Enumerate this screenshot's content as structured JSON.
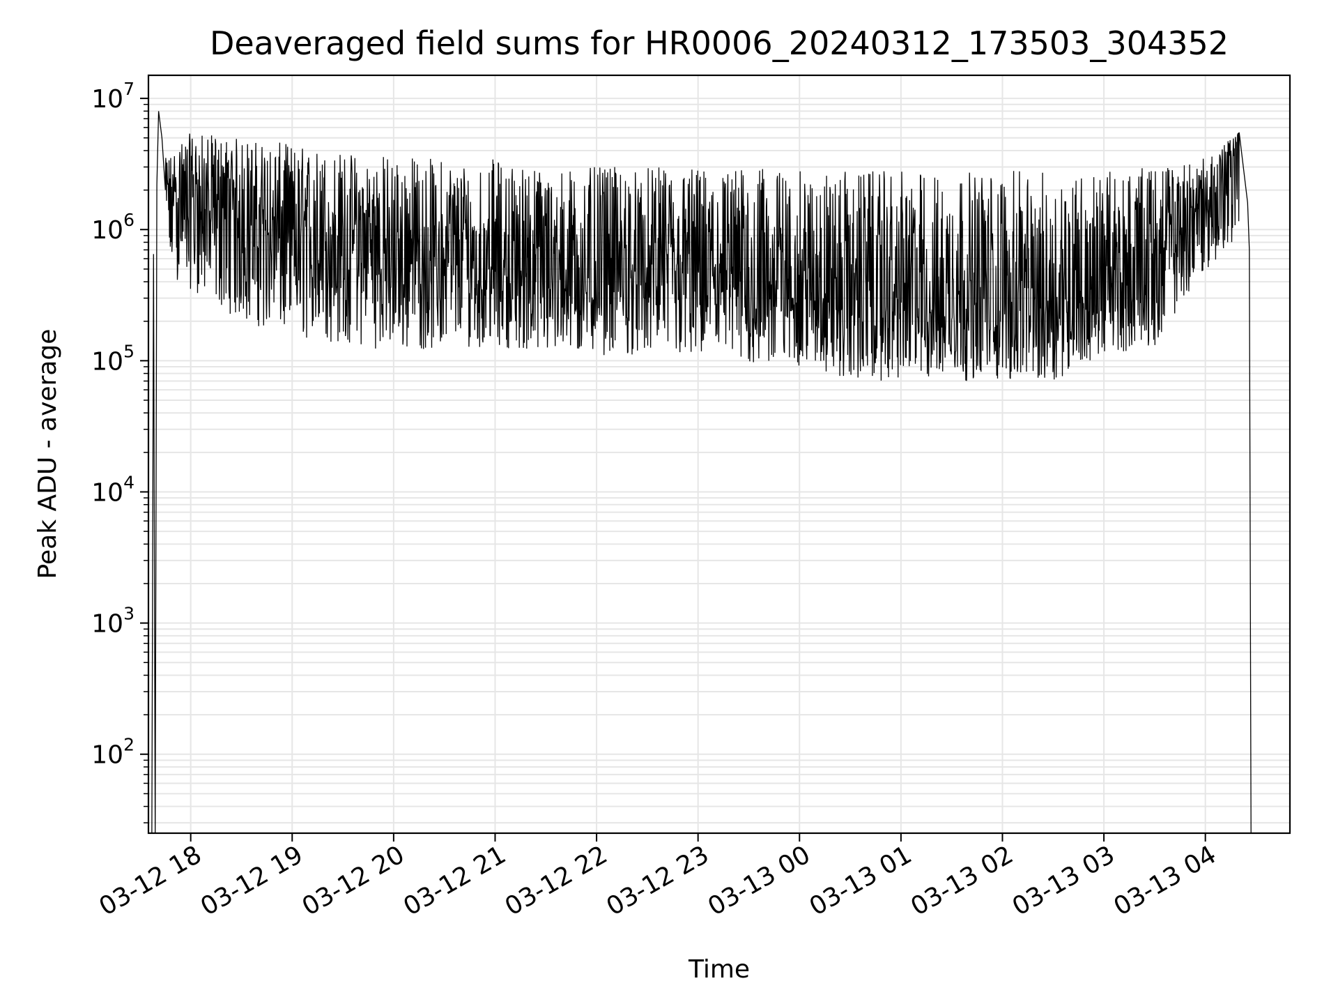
{
  "chart_data": {
    "type": "line",
    "title": "Deaveraged field sums for HR0006_20240312_173503_304352",
    "xlabel": "Time",
    "ylabel": "Peak ADU - average",
    "yscale": "log",
    "ylim": [
      25,
      15000000
    ],
    "xlim": [
      "2024-03-12 17:35",
      "2024-03-13 04:50"
    ],
    "grid": true,
    "grid_color": "#e6e6e6",
    "line_color": "#000000",
    "x_ticks": [
      {
        "value": "2024-03-12 18:00",
        "label": "03-12 18"
      },
      {
        "value": "2024-03-12 19:00",
        "label": "03-12 19"
      },
      {
        "value": "2024-03-12 20:00",
        "label": "03-12 20"
      },
      {
        "value": "2024-03-12 21:00",
        "label": "03-12 21"
      },
      {
        "value": "2024-03-12 22:00",
        "label": "03-12 22"
      },
      {
        "value": "2024-03-12 23:00",
        "label": "03-12 23"
      },
      {
        "value": "2024-03-13 00:00",
        "label": "03-13 00"
      },
      {
        "value": "2024-03-13 01:00",
        "label": "03-13 01"
      },
      {
        "value": "2024-03-13 02:00",
        "label": "03-13 02"
      },
      {
        "value": "2024-03-13 03:00",
        "label": "03-13 03"
      },
      {
        "value": "2024-03-13 04:00",
        "label": "03-13 04"
      }
    ],
    "y_ticks": [
      {
        "value": 100,
        "base": "10",
        "exp": "2"
      },
      {
        "value": 1000,
        "base": "10",
        "exp": "3"
      },
      {
        "value": 10000,
        "base": "10",
        "exp": "4"
      },
      {
        "value": 100000,
        "base": "10",
        "exp": "5"
      },
      {
        "value": 1000000,
        "base": "10",
        "exp": "6"
      },
      {
        "value": 10000000,
        "base": "10",
        "exp": "7"
      }
    ],
    "series": [
      {
        "points": [
          {
            "x": "2024-03-12 17:37",
            "y": 25
          },
          {
            "x": "2024-03-12 17:38",
            "y": 650000
          },
          {
            "x": "2024-03-12 17:39",
            "y": 25
          },
          {
            "x": "2024-03-12 17:40",
            "y": 2200000
          },
          {
            "x": "2024-03-12 17:41",
            "y": 8000000
          },
          {
            "x": "2024-03-12 17:43",
            "y": 5000000
          },
          {
            "x": "2024-03-12 17:45",
            "y": 2000000
          },
          {
            "x": "2024-03-12 18:00",
            "y": 1500000
          },
          {
            "x": "2024-03-12 18:30",
            "y": 1100000
          },
          {
            "x": "2024-03-12 19:00",
            "y": 750000
          },
          {
            "x": "2024-03-12 19:30",
            "y": 600000
          },
          {
            "x": "2024-03-12 20:00",
            "y": 550000
          },
          {
            "x": "2024-03-12 20:30",
            "y": 520000
          },
          {
            "x": "2024-03-12 21:00",
            "y": 480000
          },
          {
            "x": "2024-03-12 21:30",
            "y": 420000
          },
          {
            "x": "2024-03-12 22:00",
            "y": 400000
          },
          {
            "x": "2024-03-12 22:30",
            "y": 390000
          },
          {
            "x": "2024-03-12 23:00",
            "y": 380000
          },
          {
            "x": "2024-03-12 23:30",
            "y": 360000
          },
          {
            "x": "2024-03-13 00:00",
            "y": 320000
          },
          {
            "x": "2024-03-13 00:30",
            "y": 270000
          },
          {
            "x": "2024-03-13 01:00",
            "y": 260000
          },
          {
            "x": "2024-03-13 01:30",
            "y": 250000
          },
          {
            "x": "2024-03-13 02:00",
            "y": 250000
          },
          {
            "x": "2024-03-13 02:30",
            "y": 260000
          },
          {
            "x": "2024-03-13 03:00",
            "y": 300000
          },
          {
            "x": "2024-03-13 03:20",
            "y": 350000
          },
          {
            "x": "2024-03-13 03:40",
            "y": 700000
          },
          {
            "x": "2024-03-13 04:00",
            "y": 1500000
          },
          {
            "x": "2024-03-13 04:10",
            "y": 2000000
          },
          {
            "x": "2024-03-13 04:20",
            "y": 5500000
          },
          {
            "x": "2024-03-13 04:25",
            "y": 1600000
          },
          {
            "x": "2024-03-13 04:26",
            "y": 700000
          },
          {
            "x": "2024-03-13 04:27",
            "y": 25
          }
        ],
        "range_envelope": [
          {
            "x": "2024-03-12 17:45",
            "low": 450000,
            "high": 3500000
          },
          {
            "x": "2024-03-12 18:00",
            "low": 350000,
            "high": 5500000
          },
          {
            "x": "2024-03-12 18:30",
            "low": 200000,
            "high": 5000000
          },
          {
            "x": "2024-03-12 19:00",
            "low": 150000,
            "high": 4500000
          },
          {
            "x": "2024-03-12 19:30",
            "low": 130000,
            "high": 4000000
          },
          {
            "x": "2024-03-12 20:00",
            "low": 120000,
            "high": 3800000
          },
          {
            "x": "2024-03-12 20:30",
            "low": 120000,
            "high": 3500000
          },
          {
            "x": "2024-03-12 21:00",
            "low": 130000,
            "high": 3500000
          },
          {
            "x": "2024-03-12 21:30",
            "low": 110000,
            "high": 3000000
          },
          {
            "x": "2024-03-12 22:00",
            "low": 110000,
            "high": 3000000
          },
          {
            "x": "2024-03-12 22:30",
            "low": 110000,
            "high": 3000000
          },
          {
            "x": "2024-03-12 23:00",
            "low": 100000,
            "high": 3000000
          },
          {
            "x": "2024-03-12 23:30",
            "low": 90000,
            "high": 3000000
          },
          {
            "x": "2024-03-13 00:00",
            "low": 90000,
            "high": 2800000
          },
          {
            "x": "2024-03-13 00:30",
            "low": 70000,
            "high": 2800000
          },
          {
            "x": "2024-03-13 01:00",
            "low": 70000,
            "high": 2800000
          },
          {
            "x": "2024-03-13 01:30",
            "low": 70000,
            "high": 2800000
          },
          {
            "x": "2024-03-13 02:00",
            "low": 70000,
            "high": 2800000
          },
          {
            "x": "2024-03-13 02:30",
            "low": 70000,
            "high": 2800000
          },
          {
            "x": "2024-03-13 03:00",
            "low": 110000,
            "high": 2800000
          },
          {
            "x": "2024-03-13 03:30",
            "low": 130000,
            "high": 3000000
          },
          {
            "x": "2024-03-13 04:00",
            "low": 500000,
            "high": 3500000
          },
          {
            "x": "2024-03-13 04:20",
            "low": 700000,
            "high": 5500000
          }
        ]
      }
    ]
  }
}
